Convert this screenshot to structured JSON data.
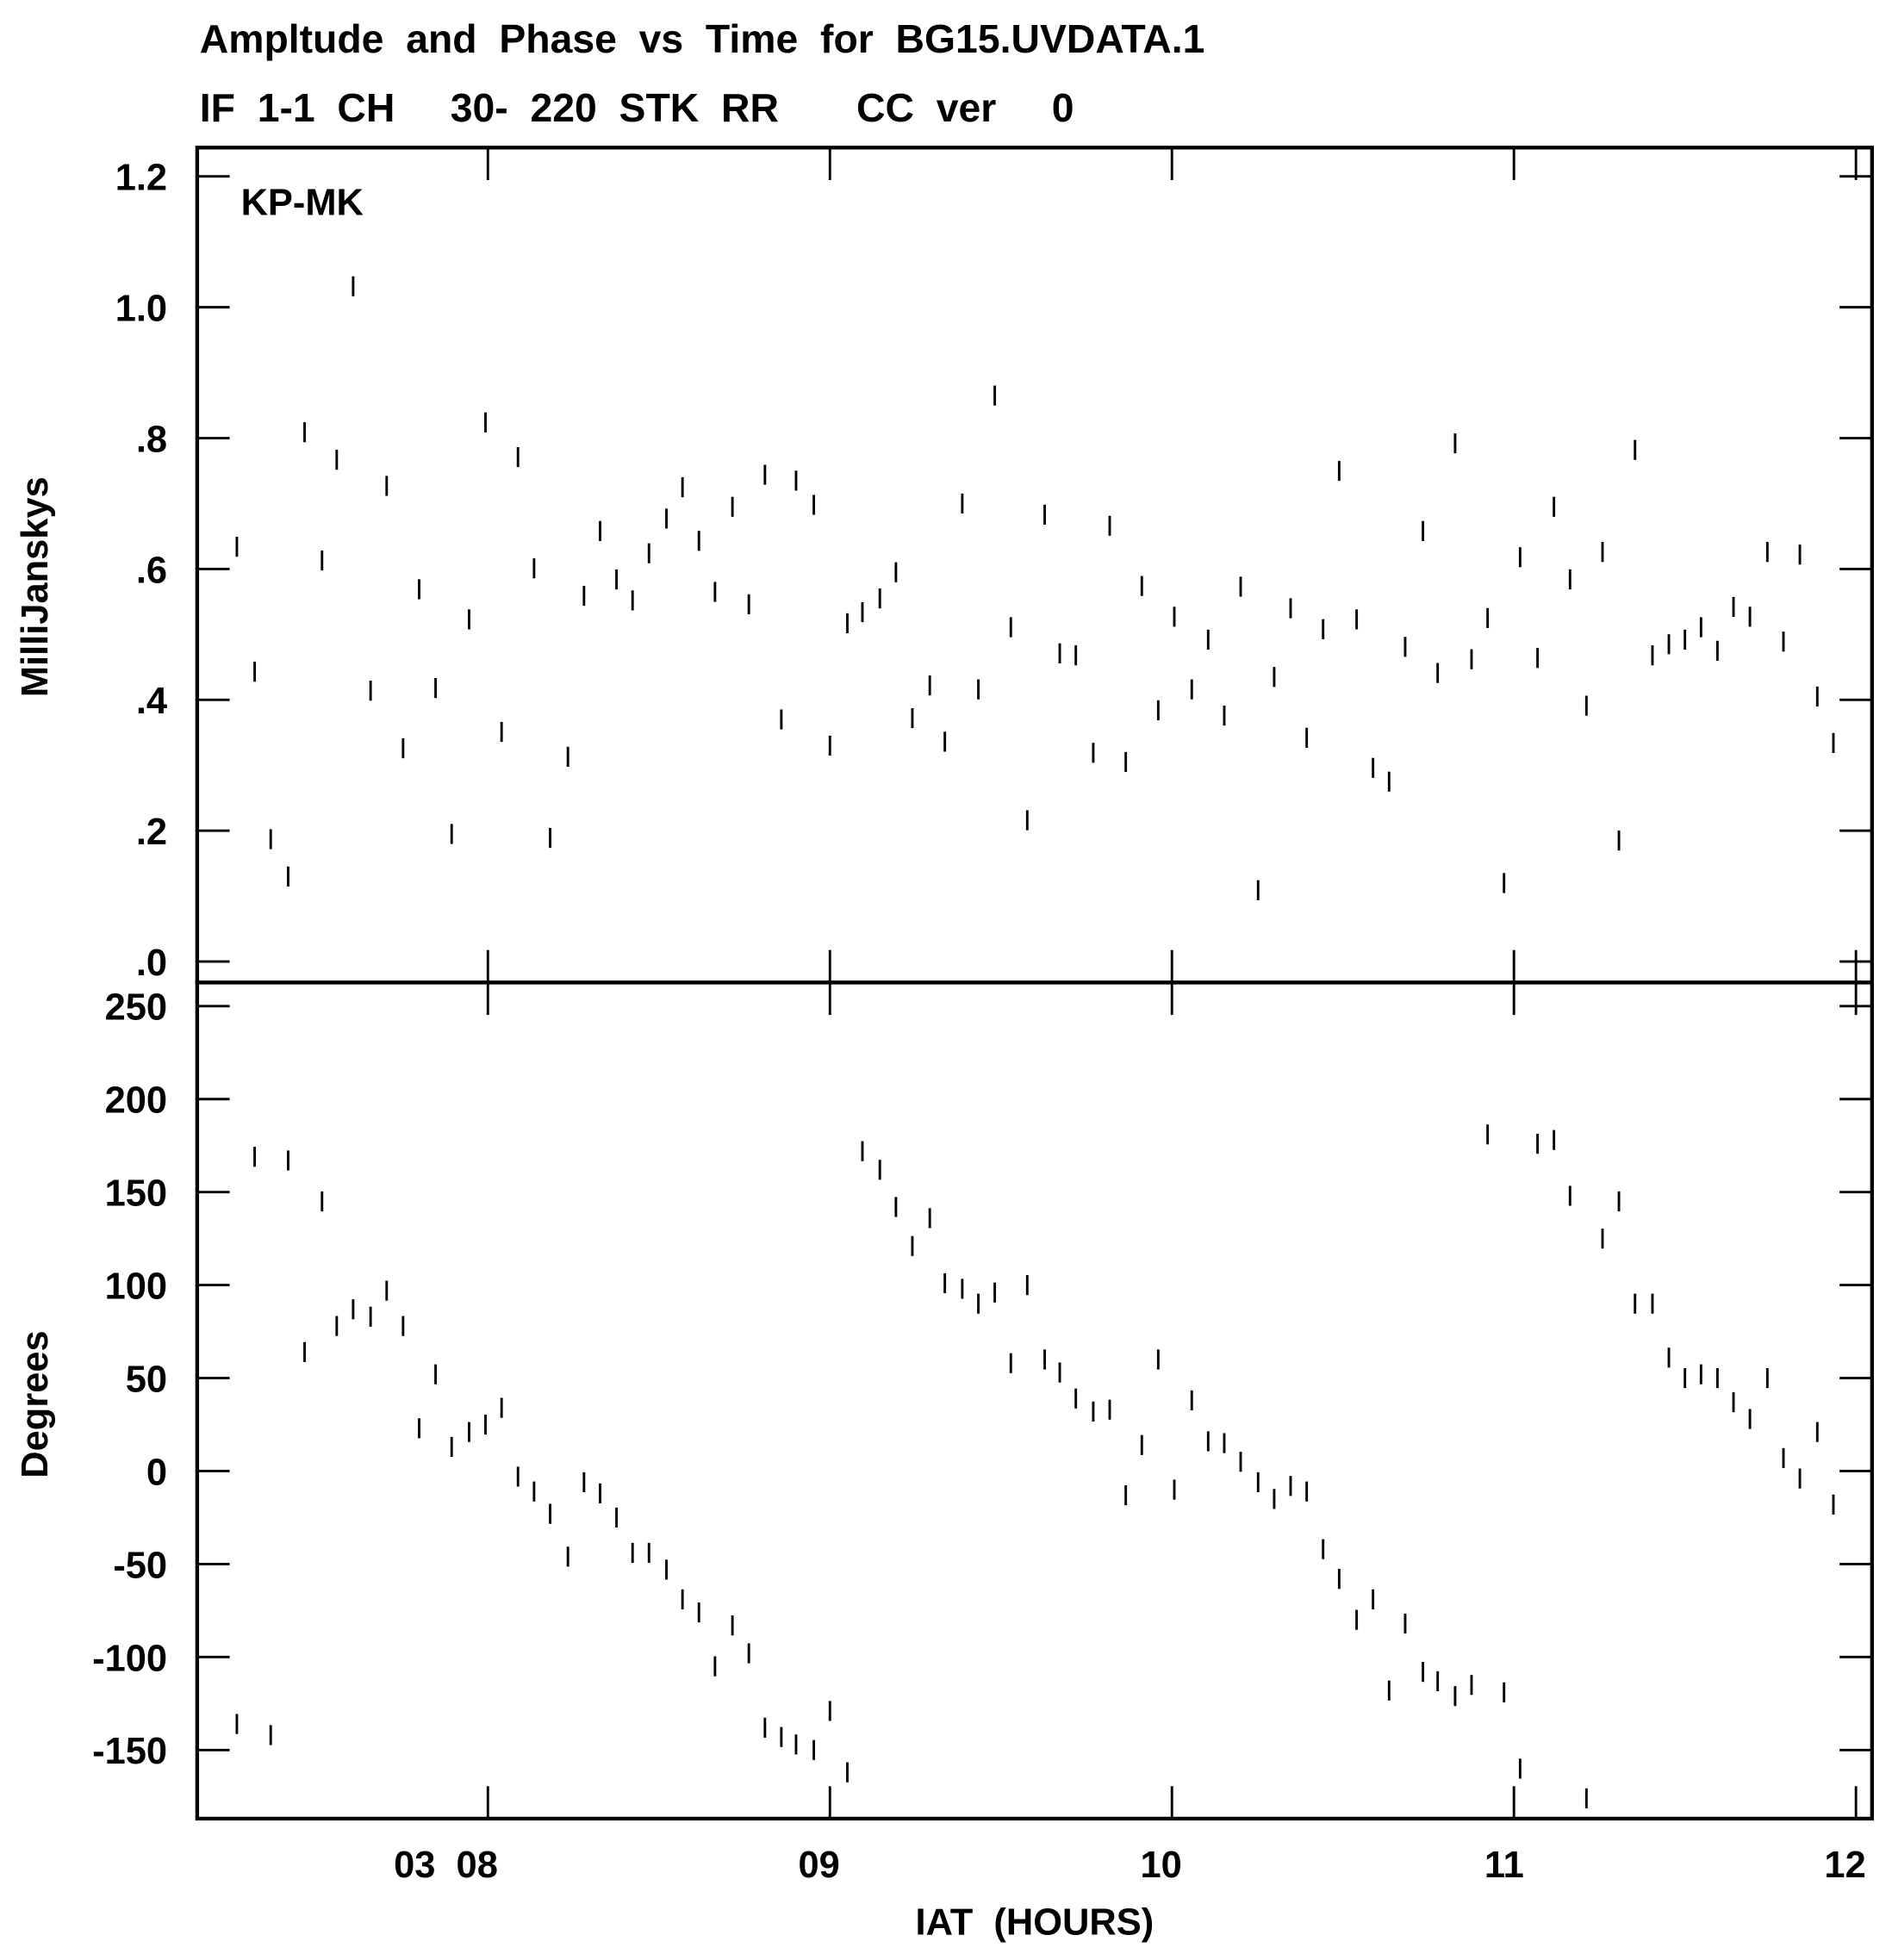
{
  "chart_data": [
    {
      "type": "scatter",
      "title": "Ampltude  and  Phase  vs  Time  for  BG15.UVDATA.1",
      "subtitle": "IF  1-1  CH     30-  220  STK  RR       CC  ver     0",
      "annotation": "KP-MK",
      "ylabel": "MilliJanskys",
      "color": "#000000",
      "xlim": [
        7.15,
        12.047
      ],
      "ylim": [
        -0.032,
        1.244
      ],
      "yticks": [
        {
          "value": 0,
          "label": ".0"
        },
        {
          "value": 0.2,
          "label": ".2"
        },
        {
          "value": 0.4,
          "label": ".4"
        },
        {
          "value": 0.6,
          "label": ".6"
        },
        {
          "value": 0.8,
          "label": ".8"
        },
        {
          "value": 1.0,
          "label": "1.0"
        },
        1.2
      ],
      "x": [
        7.266,
        7.318,
        7.365,
        7.416,
        7.464,
        7.515,
        7.558,
        7.606,
        7.657,
        7.704,
        7.752,
        7.799,
        7.847,
        7.894,
        7.945,
        7.993,
        8.04,
        8.088,
        8.135,
        8.182,
        8.234,
        8.281,
        8.328,
        8.376,
        8.423,
        8.471,
        8.522,
        8.569,
        8.617,
        8.664,
        8.715,
        8.763,
        8.81,
        8.858,
        8.901,
        8.953,
        9.0,
        9.051,
        9.095,
        9.146,
        9.193,
        9.241,
        9.292,
        9.336,
        9.387,
        9.434,
        9.482,
        9.529,
        9.577,
        9.628,
        9.672,
        9.719,
        9.77,
        9.818,
        9.865,
        9.912,
        9.96,
        10.007,
        10.058,
        10.106,
        10.153,
        10.201,
        10.252,
        10.299,
        10.347,
        10.394,
        10.442,
        10.489,
        10.54,
        10.588,
        10.635,
        10.682,
        10.734,
        10.777,
        10.828,
        10.876,
        10.923,
        10.971,
        11.018,
        11.069,
        11.117,
        11.164,
        11.212,
        11.259,
        11.307,
        11.354,
        11.405,
        11.453,
        11.5,
        11.547,
        11.595,
        11.642,
        11.69,
        11.741,
        11.788,
        11.836,
        11.887,
        11.934
      ],
      "values": [
        0.634,
        0.443,
        0.187,
        0.13,
        0.809,
        0.613,
        0.767,
        1.032,
        0.414,
        0.727,
        0.326,
        0.569,
        0.418,
        0.195,
        0.523,
        0.824,
        0.351,
        0.771,
        0.601,
        0.189,
        0.313,
        0.559,
        0.658,
        0.584,
        0.552,
        0.624,
        0.677,
        0.725,
        0.643,
        0.565,
        0.695,
        0.546,
        0.744,
        0.37,
        0.735,
        0.698,
        0.33,
        0.517,
        0.534,
        0.555,
        0.595,
        0.372,
        0.422,
        0.336,
        0.7,
        0.416,
        0.865,
        0.511,
        0.216,
        0.683,
        0.471,
        0.468,
        0.319,
        0.666,
        0.305,
        0.574,
        0.384,
        0.527,
        0.416,
        0.492,
        0.376,
        0.573,
        0.109,
        0.435,
        0.54,
        0.342,
        0.508,
        0.75,
        0.523,
        0.296,
        0.275,
        0.481,
        0.658,
        0.441,
        0.792,
        0.462,
        0.525,
        0.12,
        0.618,
        0.464,
        0.695,
        0.584,
        0.391,
        0.626,
        0.185,
        0.782,
        0.468,
        0.485,
        0.492,
        0.511,
        0.475,
        0.542,
        0.527,
        0.626,
        0.489,
        0.622,
        0.405,
        0.334
      ]
    },
    {
      "type": "scatter",
      "ylabel": "Degrees",
      "xlabel": "IAT  (HOURS)",
      "color": "#000000",
      "xlim": [
        7.15,
        12.047
      ],
      "xticks": [
        {
          "value": 8,
          "label": "03  08"
        },
        {
          "value": 9,
          "label": "09"
        },
        10,
        11,
        12
      ],
      "ylim": [
        -186.9,
        262.7
      ],
      "yticks": [
        -150,
        -100,
        -50,
        0,
        50,
        100,
        150,
        200,
        250
      ],
      "x": [
        7.266,
        7.318,
        7.365,
        7.416,
        7.464,
        7.515,
        7.558,
        7.606,
        7.657,
        7.704,
        7.752,
        7.799,
        7.847,
        7.894,
        7.945,
        7.993,
        8.04,
        8.088,
        8.135,
        8.182,
        8.234,
        8.281,
        8.328,
        8.376,
        8.423,
        8.471,
        8.522,
        8.569,
        8.617,
        8.664,
        8.715,
        8.763,
        8.81,
        8.858,
        8.901,
        8.953,
        9.0,
        9.051,
        9.095,
        9.146,
        9.193,
        9.241,
        9.292,
        9.336,
        9.387,
        9.434,
        9.482,
        9.529,
        9.577,
        9.628,
        9.672,
        9.719,
        9.77,
        9.818,
        9.865,
        9.912,
        9.96,
        10.007,
        10.058,
        10.106,
        10.153,
        10.201,
        10.252,
        10.299,
        10.347,
        10.394,
        10.442,
        10.489,
        10.54,
        10.588,
        10.635,
        10.682,
        10.734,
        10.777,
        10.828,
        10.876,
        10.923,
        10.971,
        11.018,
        11.069,
        11.117,
        11.164,
        11.212,
        11.259,
        11.307,
        11.354,
        11.405,
        11.453,
        11.5,
        11.547,
        11.595,
        11.642,
        11.69,
        11.741,
        11.788,
        11.836,
        11.887,
        11.934
      ],
      "values": [
        -136,
        169,
        -142,
        167,
        64,
        145,
        78,
        87,
        83,
        97,
        78,
        23,
        52,
        13,
        21,
        25,
        34,
        -3,
        -11,
        -23,
        -46,
        -6,
        -12,
        -25,
        -44,
        -44,
        -53,
        -69,
        -76,
        -105,
        -83,
        -98,
        -138,
        -143,
        -147,
        -150,
        -129,
        -162,
        172,
        162,
        142,
        121,
        136,
        101,
        98,
        90,
        96,
        58,
        100,
        60,
        53,
        39,
        32,
        33,
        -13,
        14,
        60,
        -10,
        38,
        16,
        15,
        5,
        -6,
        -15,
        -8,
        -11,
        -42,
        -58,
        -80,
        -69,
        -118,
        -82,
        -108,
        -113,
        -121,
        -115,
        181,
        -119,
        -160,
        176,
        178,
        148,
        -176,
        125,
        145,
        90,
        90,
        61,
        50,
        52,
        50,
        37,
        28,
        50,
        7,
        -4,
        21,
        -18
      ]
    }
  ]
}
